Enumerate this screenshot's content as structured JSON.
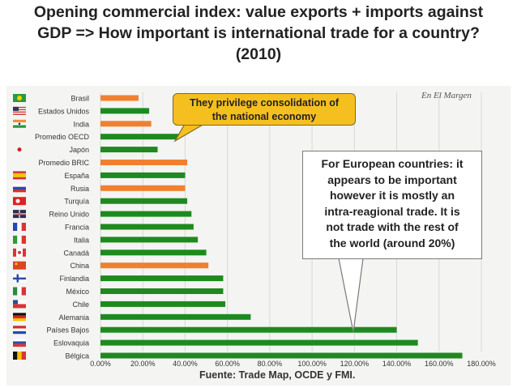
{
  "title": {
    "line1": "Opening commercial index: value exports + imports against",
    "line2": "GDP => How important is international trade for a country?",
    "line3": "(2010)"
  },
  "watermark": "En El Margen",
  "callout_left": {
    "line1": "They privilege consolidation of",
    "line2": "the national economy"
  },
  "callout_right": {
    "lines": [
      "For European countries: it",
      "appears to be important",
      "however it is mostly an",
      "intra-reagional trade. It is",
      "not trade with the rest of",
      "the world (around 20%)"
    ]
  },
  "source": "Fuente: Trade Map, OCDE y FMI.",
  "colors": {
    "green": "#1e8a1e",
    "orange": "#f08030",
    "callout_yellow": "#f5c01f"
  },
  "chart_data": {
    "type": "bar",
    "orientation": "horizontal",
    "xlim": [
      0,
      180
    ],
    "ticks": [
      "0.00%",
      "20.00%",
      "40.00%",
      "60.00%",
      "80.00%",
      "100.00%",
      "120.00%",
      "140.00%",
      "160.00%",
      "180.00%"
    ],
    "categories": [
      "Brasil",
      "Estados Unidos",
      "India",
      "Promedio OECD",
      "Japón",
      "Promedio BRIC",
      "España",
      "Rusia",
      "Turquía",
      "Reino Unido",
      "Francia",
      "Italia",
      "Canadá",
      "China",
      "Finlandia",
      "México",
      "Chile",
      "Alemania",
      "Países Bajos",
      "Eslovaquia",
      "Bélgica"
    ],
    "values": [
      18,
      23,
      24,
      37,
      27,
      41,
      40,
      40,
      41,
      43,
      44,
      46,
      50,
      51,
      58,
      58,
      59,
      71,
      140,
      150,
      171
    ],
    "bar_colors": [
      "orange",
      "green",
      "orange",
      "green",
      "green",
      "orange",
      "green",
      "orange",
      "green",
      "green",
      "green",
      "green",
      "green",
      "orange",
      "green",
      "green",
      "green",
      "green",
      "green",
      "green",
      "green"
    ],
    "flags": [
      "brazil",
      "usa",
      "india",
      "oecd",
      "japan",
      "bric",
      "spain",
      "russia",
      "turkey",
      "uk",
      "france",
      "italy",
      "canada",
      "china",
      "finland",
      "mexico",
      "chile",
      "germany",
      "netherlands",
      "slovakia",
      "belgium"
    ]
  }
}
